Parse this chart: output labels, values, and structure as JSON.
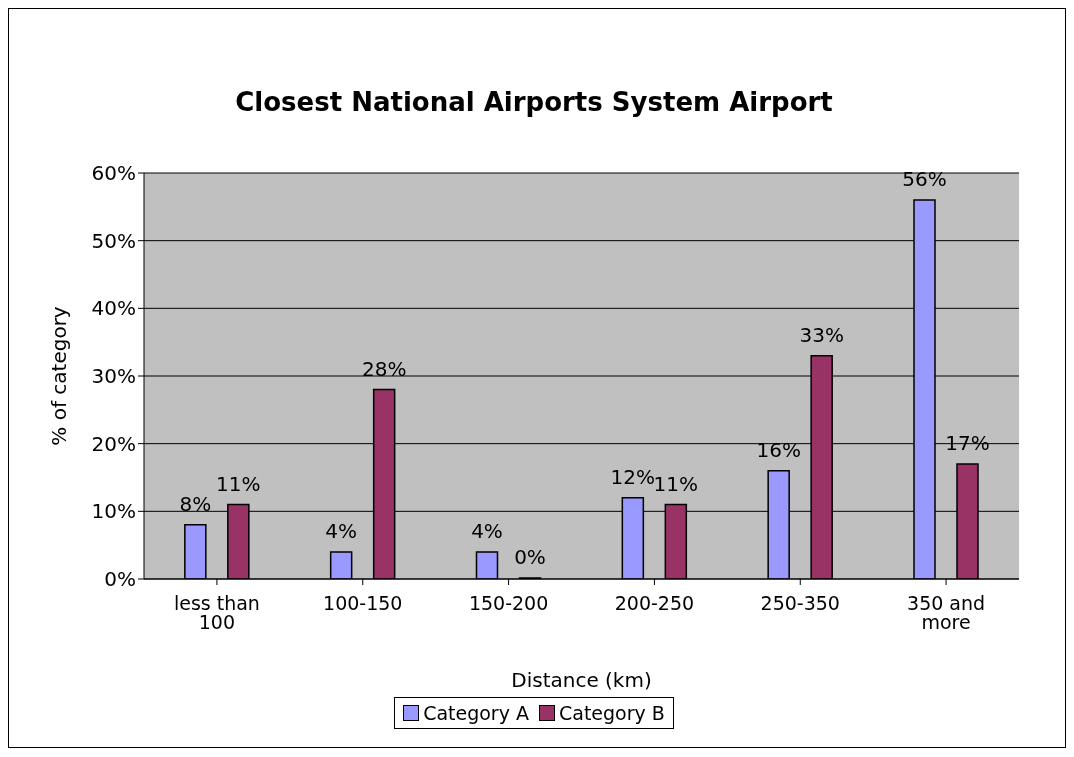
{
  "chart_data": {
    "type": "bar",
    "title": "Closest National Airports System Airport",
    "xlabel": "Distance (km)",
    "ylabel": "% of category",
    "categories": [
      "less than 100",
      "100-150",
      "150-200",
      "200-250",
      "250-350",
      "350 and more"
    ],
    "series": [
      {
        "name": "Category A",
        "color": "#9999ff",
        "values": [
          8,
          4,
          4,
          12,
          16,
          56
        ],
        "value_labels": [
          "8%",
          "4%",
          "4%",
          "12%",
          "16%",
          "56%"
        ]
      },
      {
        "name": "Category B",
        "color": "#993366",
        "values": [
          11,
          28,
          0,
          11,
          33,
          17
        ],
        "value_labels": [
          "11%",
          "28%",
          "0%",
          "11%",
          "33%",
          "17%"
        ]
      }
    ],
    "ylim": [
      0,
      60
    ],
    "yticks": [
      {
        "value": 0,
        "label": "0%"
      },
      {
        "value": 10,
        "label": "10%"
      },
      {
        "value": 20,
        "label": "20%"
      },
      {
        "value": 30,
        "label": "30%"
      },
      {
        "value": 40,
        "label": "40%"
      },
      {
        "value": 50,
        "label": "50%"
      },
      {
        "value": 60,
        "label": "60%"
      }
    ],
    "grid": "y",
    "legend": "bottom"
  }
}
